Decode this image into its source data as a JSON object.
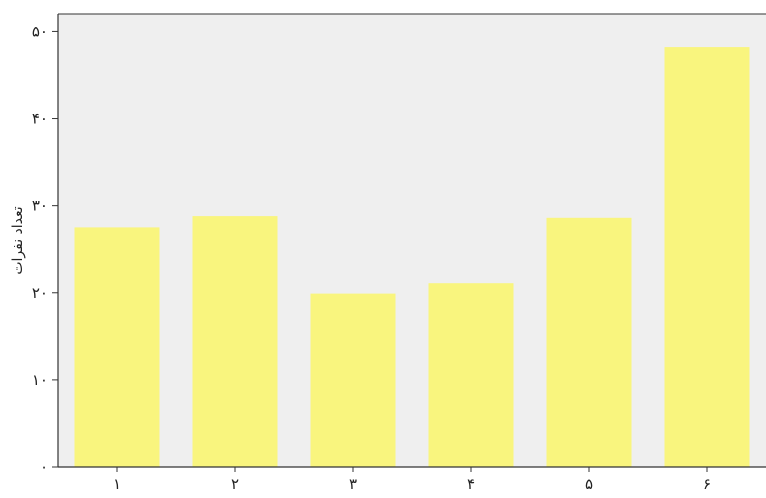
{
  "chart_data": {
    "type": "bar",
    "ylabel": "تعداد نفرات",
    "xlabel": "",
    "categories": [
      "۱",
      "۲",
      "۳",
      "۴",
      "۵",
      "۶"
    ],
    "values": [
      27.5,
      28.8,
      19.9,
      21.1,
      28.6,
      48.2
    ],
    "ylim": [
      0,
      52
    ],
    "y_ticks": [
      0,
      10,
      20,
      30,
      40,
      50
    ],
    "y_tick_labels": [
      "۰",
      "۱۰",
      "۲۰",
      "۳۰",
      "۴۰",
      "۵۰"
    ],
    "grid": false,
    "legend": "none",
    "colors": {
      "bar_fill": "#F9F57E",
      "plot_background": "#EFEFEF",
      "axis": "#333333"
    }
  }
}
